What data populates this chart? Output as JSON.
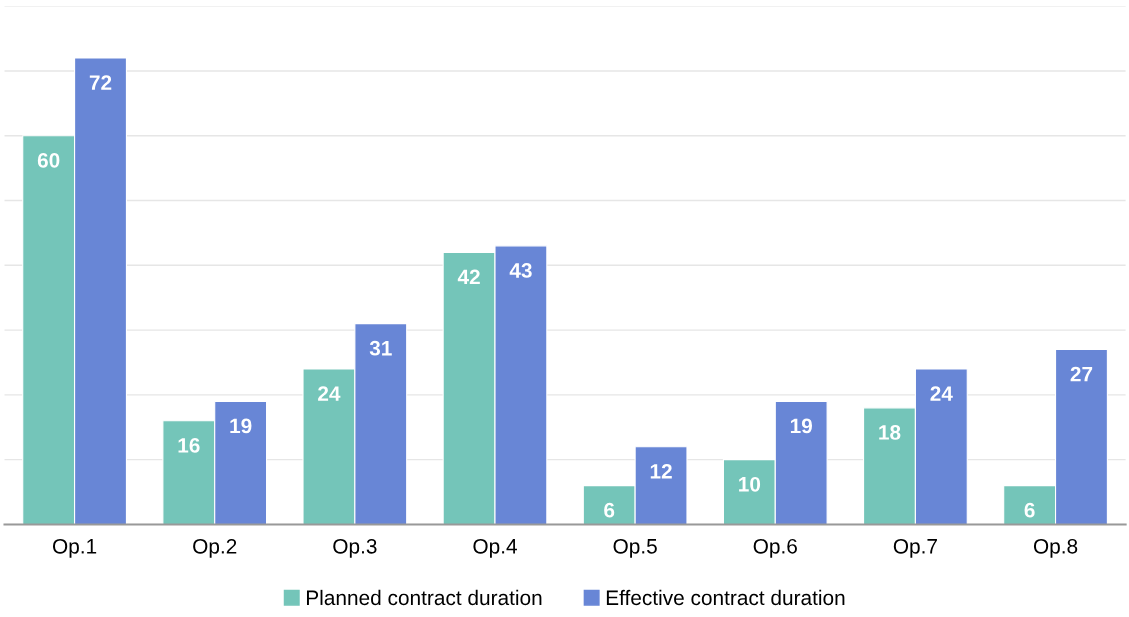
{
  "chart_data": {
    "type": "bar",
    "categories": [
      "Op.1",
      "Op.2",
      "Op.3",
      "Op.4",
      "Op.5",
      "Op.6",
      "Op.7",
      "Op.8"
    ],
    "series": [
      {
        "name": "Planned contract duration",
        "color": "#74c5b9",
        "values": [
          60,
          16,
          24,
          42,
          6,
          10,
          18,
          6
        ]
      },
      {
        "name": "Effective contract duration",
        "color": "#6886d6",
        "values": [
          72,
          19,
          31,
          43,
          12,
          19,
          24,
          27
        ]
      }
    ],
    "ylim": [
      0,
      80
    ],
    "yticks": [
      {
        "value": 0,
        "label": null
      },
      {
        "value": 10,
        "label": null
      },
      {
        "value": 20,
        "label": null
      },
      {
        "value": 30,
        "label": null
      },
      {
        "value": 40,
        "label": null
      },
      {
        "value": 50,
        "label": null
      },
      {
        "value": 60,
        "label": null
      },
      {
        "value": 70,
        "label": null
      },
      {
        "value": 80,
        "label": null
      }
    ],
    "tick_labels": "x",
    "grid": "y",
    "legend": "bottom",
    "data_labels": true
  }
}
